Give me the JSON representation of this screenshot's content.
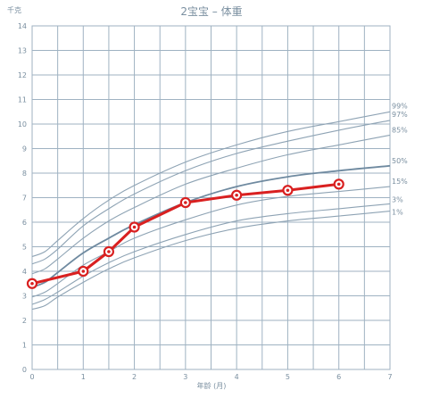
{
  "chart_data": {
    "type": "line",
    "title": "2宝宝 – 体重",
    "ylabel": "千克",
    "xlabel": "年龄 (月)",
    "xlim": [
      0,
      7
    ],
    "ylim": [
      0,
      14
    ],
    "x_ticks": [
      0,
      1,
      2,
      3,
      4,
      5,
      6,
      7
    ],
    "y_ticks": [
      0,
      1,
      2,
      3,
      4,
      5,
      6,
      7,
      8,
      9,
      10,
      11,
      12,
      13,
      14
    ],
    "x_minor_step": 0.5,
    "grid": true,
    "percentiles": [
      {
        "name": "99%",
        "x": [
          0,
          0.25,
          0.5,
          1,
          1.5,
          2,
          3,
          4,
          5,
          6,
          7
        ],
        "values": [
          4.6,
          4.8,
          5.25,
          6.15,
          6.9,
          7.5,
          8.45,
          9.15,
          9.7,
          10.1,
          10.5
        ]
      },
      {
        "name": "97%",
        "x": [
          0,
          0.25,
          0.5,
          1,
          1.5,
          2,
          3,
          4,
          5,
          6,
          7
        ],
        "values": [
          4.3,
          4.5,
          4.9,
          5.85,
          6.55,
          7.15,
          8.1,
          8.8,
          9.3,
          9.75,
          10.15
        ]
      },
      {
        "name": "85%",
        "x": [
          0,
          0.25,
          0.5,
          1,
          1.5,
          2,
          3,
          4,
          5,
          6,
          7
        ],
        "values": [
          3.9,
          4.1,
          4.5,
          5.35,
          6.05,
          6.6,
          7.55,
          8.2,
          8.75,
          9.15,
          9.55
        ]
      },
      {
        "name": "50%",
        "x": [
          0,
          0.25,
          0.5,
          1,
          1.5,
          2,
          3,
          4,
          5,
          6,
          7
        ],
        "values": [
          3.35,
          3.55,
          3.95,
          4.75,
          5.35,
          5.9,
          6.8,
          7.45,
          7.85,
          8.1,
          8.3
        ]
      },
      {
        "name": "15%",
        "x": [
          0,
          0.25,
          0.5,
          1,
          1.5,
          2,
          3,
          4,
          5,
          6,
          7
        ],
        "values": [
          2.95,
          3.15,
          3.5,
          4.25,
          4.8,
          5.35,
          6.1,
          6.7,
          7.05,
          7.25,
          7.45
        ]
      },
      {
        "name": "3%",
        "x": [
          0,
          0.25,
          0.5,
          1,
          1.5,
          2,
          3,
          4,
          5,
          6,
          7
        ],
        "values": [
          2.65,
          2.85,
          3.15,
          3.8,
          4.35,
          4.8,
          5.5,
          6.05,
          6.35,
          6.55,
          6.75
        ]
      },
      {
        "name": "1%",
        "x": [
          0,
          0.25,
          0.5,
          1,
          1.5,
          2,
          3,
          4,
          5,
          6,
          7
        ],
        "values": [
          2.45,
          2.6,
          2.95,
          3.55,
          4.1,
          4.55,
          5.25,
          5.75,
          6.05,
          6.25,
          6.45
        ]
      }
    ],
    "series": [
      {
        "x": [
          0,
          1,
          1.5,
          2,
          3,
          4,
          5,
          6
        ],
        "values": [
          3.5,
          4.0,
          4.8,
          5.8,
          6.8,
          7.1,
          7.3,
          7.55
        ]
      }
    ],
    "colors": {
      "series": "#d92020",
      "percentile": "#8ea3b4",
      "median": "#6f8aa0",
      "grid": "#9fb2c2",
      "text": "#7a8fa0"
    }
  }
}
